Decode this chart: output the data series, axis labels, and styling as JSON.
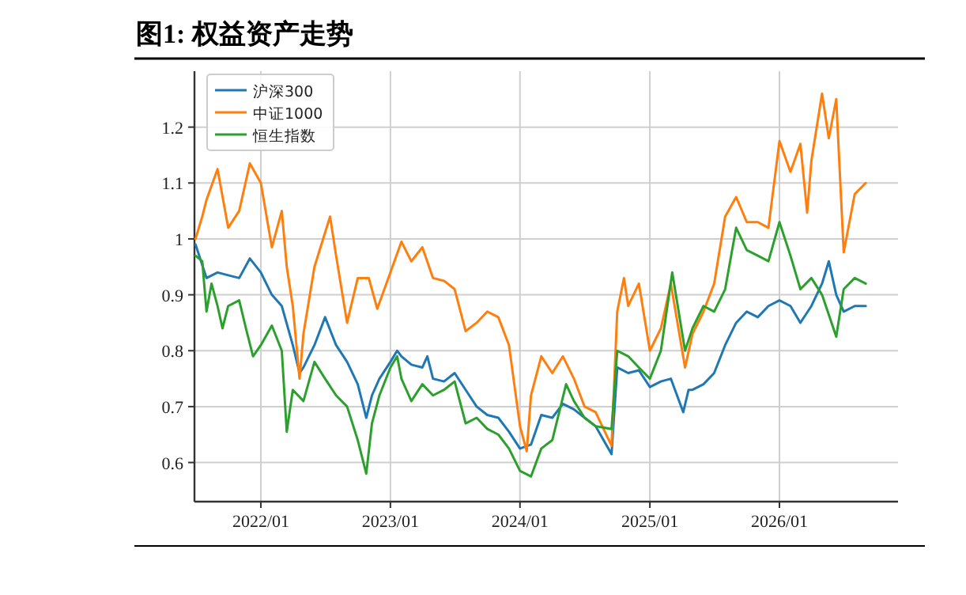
{
  "chart_data": {
    "type": "line",
    "title": "图1:  权益资产走势",
    "xlim": [
      "2021-06-28",
      "2026-12-01"
    ],
    "xticks": [
      {
        "value": "2022-01",
        "label": "2022/01"
      },
      {
        "value": "2023-01",
        "label": "2023/01"
      },
      {
        "value": "2024-01",
        "label": "2024/01"
      },
      {
        "value": "2025-01",
        "label": "2025/01"
      },
      {
        "value": "2026-01",
        "label": "2026/01"
      }
    ],
    "ylim": [
      0.53,
      1.3
    ],
    "yticks": [
      0.6,
      0.7,
      0.8,
      0.9,
      1.0,
      1.2,
      1.1
    ],
    "grid": true,
    "legend": "top left",
    "series": [
      {
        "name": "沪深300",
        "color": "#1f77b4",
        "x": [
          "2021-07-01",
          "2021-08-01",
          "2021-09-01",
          "2021-10-01",
          "2021-11-01",
          "2021-12-01",
          "2022-01-01",
          "2022-02-01",
          "2022-03-01",
          "2022-04-01",
          "2022-04-20",
          "2022-05-01",
          "2022-06-01",
          "2022-07-01",
          "2022-08-01",
          "2022-09-01",
          "2022-10-01",
          "2022-10-25",
          "2022-11-10",
          "2022-12-01",
          "2023-01-01",
          "2023-01-20",
          "2023-02-01",
          "2023-03-01",
          "2023-04-01",
          "2023-04-15",
          "2023-05-01",
          "2023-06-01",
          "2023-07-01",
          "2023-08-01",
          "2023-09-01",
          "2023-10-01",
          "2023-11-01",
          "2023-12-01",
          "2024-01-01",
          "2024-02-01",
          "2024-03-01",
          "2024-04-01",
          "2024-05-01",
          "2024-06-01",
          "2024-07-01",
          "2024-08-01",
          "2024-09-15",
          "2024-10-01",
          "2024-11-01",
          "2024-12-01",
          "2025-01-01",
          "2025-02-01",
          "2025-03-01",
          "2025-04-05",
          "2025-04-20",
          "2025-05-01",
          "2025-06-01",
          "2025-07-01",
          "2025-08-01",
          "2025-09-01",
          "2025-10-01",
          "2025-11-01",
          "2025-12-01",
          "2026-01-01",
          "2026-02-01",
          "2026-03-01",
          "2026-04-01",
          "2026-05-01",
          "2026-05-20",
          "2026-06-10",
          "2026-07-01",
          "2026-08-01",
          "2026-09-01"
        ],
        "values": [
          0.99,
          0.93,
          0.94,
          0.935,
          0.93,
          0.965,
          0.94,
          0.9,
          0.88,
          0.81,
          0.76,
          0.77,
          0.81,
          0.86,
          0.81,
          0.78,
          0.74,
          0.68,
          0.72,
          0.75,
          0.78,
          0.8,
          0.79,
          0.775,
          0.77,
          0.79,
          0.75,
          0.745,
          0.76,
          0.73,
          0.7,
          0.685,
          0.68,
          0.655,
          0.625,
          0.632,
          0.685,
          0.68,
          0.705,
          0.695,
          0.68,
          0.665,
          0.615,
          0.77,
          0.76,
          0.765,
          0.735,
          0.745,
          0.75,
          0.69,
          0.73,
          0.73,
          0.74,
          0.76,
          0.81,
          0.85,
          0.87,
          0.86,
          0.88,
          0.89,
          0.88,
          0.85,
          0.88,
          0.92,
          0.96,
          0.9,
          0.87,
          0.88,
          0.88
        ]
      },
      {
        "name": "中证1000",
        "color": "#ff7f0e",
        "x": [
          "2021-07-01",
          "2021-07-20",
          "2021-08-01",
          "2021-09-01",
          "2021-10-01",
          "2021-11-01",
          "2021-12-01",
          "2022-01-01",
          "2022-02-01",
          "2022-03-01",
          "2022-03-15",
          "2022-04-01",
          "2022-04-20",
          "2022-05-01",
          "2022-06-01",
          "2022-07-15",
          "2022-08-01",
          "2022-09-01",
          "2022-10-01",
          "2022-11-01",
          "2022-11-25",
          "2023-01-01",
          "2023-02-01",
          "2023-03-01",
          "2023-04-01",
          "2023-05-01",
          "2023-06-01",
          "2023-07-01",
          "2023-08-01",
          "2023-09-01",
          "2023-10-01",
          "2023-11-01",
          "2023-12-01",
          "2024-01-01",
          "2024-01-20",
          "2024-02-01",
          "2024-03-01",
          "2024-04-01",
          "2024-05-01",
          "2024-06-01",
          "2024-07-01",
          "2024-08-01",
          "2024-09-15",
          "2024-10-01",
          "2024-10-20",
          "2024-11-01",
          "2024-12-01",
          "2025-01-01",
          "2025-02-01",
          "2025-03-01",
          "2025-04-10",
          "2025-05-01",
          "2025-06-01",
          "2025-07-01",
          "2025-08-01",
          "2025-09-01",
          "2025-10-01",
          "2025-11-01",
          "2025-12-01",
          "2026-01-01",
          "2026-02-01",
          "2026-03-01",
          "2026-03-20",
          "2026-04-01",
          "2026-05-01",
          "2026-05-20",
          "2026-06-10",
          "2026-07-01",
          "2026-08-01",
          "2026-09-01"
        ],
        "values": [
          1.0,
          1.04,
          1.07,
          1.125,
          1.02,
          1.05,
          1.135,
          1.1,
          0.985,
          1.05,
          0.95,
          0.88,
          0.75,
          0.83,
          0.95,
          1.04,
          0.97,
          0.85,
          0.93,
          0.93,
          0.875,
          0.94,
          0.995,
          0.96,
          0.985,
          0.93,
          0.925,
          0.91,
          0.835,
          0.85,
          0.87,
          0.86,
          0.81,
          0.665,
          0.62,
          0.72,
          0.79,
          0.76,
          0.79,
          0.75,
          0.7,
          0.69,
          0.63,
          0.87,
          0.93,
          0.88,
          0.92,
          0.8,
          0.84,
          0.92,
          0.77,
          0.83,
          0.87,
          0.92,
          1.04,
          1.075,
          1.03,
          1.03,
          1.02,
          1.175,
          1.12,
          1.17,
          1.047,
          1.14,
          1.26,
          1.18,
          1.25,
          0.976,
          1.08,
          1.1
        ]
      },
      {
        "name": "恒生指数",
        "color": "#2ca02c",
        "x": [
          "2021-07-01",
          "2021-07-20",
          "2021-08-01",
          "2021-08-15",
          "2021-09-01",
          "2021-09-15",
          "2021-10-01",
          "2021-11-01",
          "2021-11-20",
          "2021-12-10",
          "2022-01-01",
          "2022-02-01",
          "2022-03-01",
          "2022-03-15",
          "2022-04-01",
          "2022-05-01",
          "2022-06-01",
          "2022-07-01",
          "2022-08-01",
          "2022-09-01",
          "2022-10-01",
          "2022-10-25",
          "2022-11-10",
          "2022-12-01",
          "2023-01-01",
          "2023-01-20",
          "2023-02-01",
          "2023-03-01",
          "2023-04-01",
          "2023-05-01",
          "2023-06-01",
          "2023-07-01",
          "2023-08-01",
          "2023-09-01",
          "2023-10-01",
          "2023-11-01",
          "2023-12-01",
          "2024-01-01",
          "2024-02-01",
          "2024-03-01",
          "2024-04-01",
          "2024-05-10",
          "2024-06-01",
          "2024-07-01",
          "2024-08-01",
          "2024-09-15",
          "2024-10-01",
          "2024-11-01",
          "2024-12-01",
          "2025-01-01",
          "2025-02-01",
          "2025-03-05",
          "2025-04-10",
          "2025-05-01",
          "2025-06-01",
          "2025-07-01",
          "2025-08-01",
          "2025-09-01",
          "2025-10-01",
          "2025-11-01",
          "2025-12-01",
          "2026-01-01",
          "2026-02-01",
          "2026-03-01",
          "2026-04-01",
          "2026-05-01",
          "2026-06-10",
          "2026-07-01",
          "2026-08-01",
          "2026-09-01"
        ],
        "values": [
          0.97,
          0.96,
          0.87,
          0.92,
          0.88,
          0.84,
          0.88,
          0.89,
          0.84,
          0.79,
          0.81,
          0.845,
          0.8,
          0.655,
          0.73,
          0.71,
          0.78,
          0.75,
          0.72,
          0.7,
          0.64,
          0.58,
          0.67,
          0.72,
          0.77,
          0.79,
          0.75,
          0.71,
          0.74,
          0.72,
          0.73,
          0.745,
          0.67,
          0.68,
          0.66,
          0.65,
          0.625,
          0.585,
          0.575,
          0.625,
          0.64,
          0.74,
          0.71,
          0.68,
          0.665,
          0.66,
          0.8,
          0.79,
          0.77,
          0.75,
          0.8,
          0.94,
          0.8,
          0.84,
          0.88,
          0.87,
          0.91,
          1.02,
          0.98,
          0.97,
          0.96,
          1.03,
          0.97,
          0.91,
          0.93,
          0.9,
          0.825,
          0.91,
          0.93,
          0.92
        ]
      }
    ]
  }
}
